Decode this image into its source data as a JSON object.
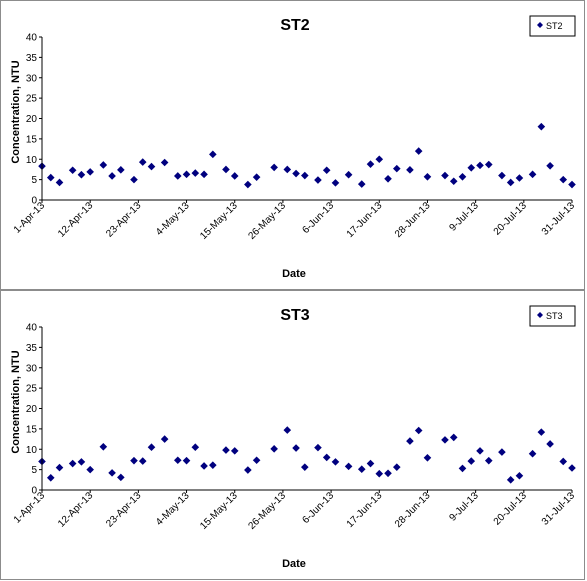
{
  "chart_data": [
    {
      "type": "scatter",
      "title": "ST2",
      "xlabel": "Date",
      "ylabel": "Concentration, NTU",
      "ylim": [
        0,
        40
      ],
      "yticks": [
        0,
        5,
        10,
        15,
        20,
        25,
        30,
        35,
        40
      ],
      "xlim": [
        "2013-04-01",
        "2013-07-31"
      ],
      "xticks": [
        "1-Apr-13",
        "12-Apr-13",
        "23-Apr-13",
        "4-May-13",
        "15-May-13",
        "26-May-13",
        "6-Jun-13",
        "17-Jun-13",
        "28-Jun-13",
        "9-Jul-13",
        "20-Jul-13",
        "31-Jul-13"
      ],
      "xtick_dates": [
        "2013-04-01",
        "2013-04-12",
        "2013-04-23",
        "2013-05-04",
        "2013-05-15",
        "2013-05-26",
        "2013-06-06",
        "2013-06-17",
        "2013-06-28",
        "2013-07-09",
        "2013-07-20",
        "2013-07-31"
      ],
      "grid": false,
      "legend": "top-right",
      "series": [
        {
          "name": "ST2",
          "color": "#00007f",
          "marker": "diamond",
          "points": [
            {
              "x": "2013-04-01",
              "y": 8.3
            },
            {
              "x": "2013-04-03",
              "y": 5.5
            },
            {
              "x": "2013-04-05",
              "y": 4.3
            },
            {
              "x": "2013-04-08",
              "y": 7.3
            },
            {
              "x": "2013-04-10",
              "y": 6.2
            },
            {
              "x": "2013-04-12",
              "y": 6.9
            },
            {
              "x": "2013-04-15",
              "y": 8.6
            },
            {
              "x": "2013-04-17",
              "y": 5.9
            },
            {
              "x": "2013-04-19",
              "y": 7.4
            },
            {
              "x": "2013-04-22",
              "y": 5.0
            },
            {
              "x": "2013-04-24",
              "y": 9.3
            },
            {
              "x": "2013-04-26",
              "y": 8.2
            },
            {
              "x": "2013-04-29",
              "y": 9.2
            },
            {
              "x": "2013-05-02",
              "y": 5.9
            },
            {
              "x": "2013-05-04",
              "y": 6.3
            },
            {
              "x": "2013-05-06",
              "y": 6.6
            },
            {
              "x": "2013-05-08",
              "y": 6.3
            },
            {
              "x": "2013-05-10",
              "y": 11.2
            },
            {
              "x": "2013-05-13",
              "y": 7.5
            },
            {
              "x": "2013-05-15",
              "y": 5.9
            },
            {
              "x": "2013-05-18",
              "y": 3.8
            },
            {
              "x": "2013-05-20",
              "y": 5.6
            },
            {
              "x": "2013-05-24",
              "y": 8.0
            },
            {
              "x": "2013-05-27",
              "y": 7.5
            },
            {
              "x": "2013-05-29",
              "y": 6.5
            },
            {
              "x": "2013-05-31",
              "y": 6.0
            },
            {
              "x": "2013-06-03",
              "y": 4.9
            },
            {
              "x": "2013-06-05",
              "y": 7.3
            },
            {
              "x": "2013-06-07",
              "y": 4.2
            },
            {
              "x": "2013-06-10",
              "y": 6.2
            },
            {
              "x": "2013-06-13",
              "y": 3.9
            },
            {
              "x": "2013-06-15",
              "y": 8.8
            },
            {
              "x": "2013-06-17",
              "y": 10.0
            },
            {
              "x": "2013-06-19",
              "y": 5.2
            },
            {
              "x": "2013-06-21",
              "y": 7.7
            },
            {
              "x": "2013-06-24",
              "y": 7.4
            },
            {
              "x": "2013-06-26",
              "y": 12.0
            },
            {
              "x": "2013-06-28",
              "y": 5.7
            },
            {
              "x": "2013-07-02",
              "y": 6.0
            },
            {
              "x": "2013-07-04",
              "y": 4.6
            },
            {
              "x": "2013-07-06",
              "y": 5.7
            },
            {
              "x": "2013-07-08",
              "y": 7.9
            },
            {
              "x": "2013-07-10",
              "y": 8.5
            },
            {
              "x": "2013-07-12",
              "y": 8.7
            },
            {
              "x": "2013-07-15",
              "y": 6.0
            },
            {
              "x": "2013-07-17",
              "y": 4.3
            },
            {
              "x": "2013-07-19",
              "y": 5.4
            },
            {
              "x": "2013-07-22",
              "y": 6.3
            },
            {
              "x": "2013-07-24",
              "y": 18.0
            },
            {
              "x": "2013-07-26",
              "y": 8.4
            },
            {
              "x": "2013-07-29",
              "y": 5.0
            },
            {
              "x": "2013-07-31",
              "y": 3.8
            }
          ]
        }
      ]
    },
    {
      "type": "scatter",
      "title": "ST3",
      "xlabel": "Date",
      "ylabel": "Concentration, NTU",
      "ylim": [
        0,
        40
      ],
      "yticks": [
        0,
        5,
        10,
        15,
        20,
        25,
        30,
        35,
        40
      ],
      "xlim": [
        "2013-04-01",
        "2013-07-31"
      ],
      "xticks": [
        "1-Apr-13",
        "12-Apr-13",
        "23-Apr-13",
        "4-May-13",
        "15-May-13",
        "26-May-13",
        "6-Jun-13",
        "17-Jun-13",
        "28-Jun-13",
        "9-Jul-13",
        "20-Jul-13",
        "31-Jul-13"
      ],
      "xtick_dates": [
        "2013-04-01",
        "2013-04-12",
        "2013-04-23",
        "2013-05-04",
        "2013-05-15",
        "2013-05-26",
        "2013-06-06",
        "2013-06-17",
        "2013-06-28",
        "2013-07-09",
        "2013-07-20",
        "2013-07-31"
      ],
      "grid": false,
      "legend": "top-right",
      "series": [
        {
          "name": "ST3",
          "color": "#00007f",
          "marker": "diamond",
          "points": [
            {
              "x": "2013-04-01",
              "y": 7.0
            },
            {
              "x": "2013-04-03",
              "y": 3.0
            },
            {
              "x": "2013-04-05",
              "y": 5.5
            },
            {
              "x": "2013-04-08",
              "y": 6.5
            },
            {
              "x": "2013-04-10",
              "y": 6.9
            },
            {
              "x": "2013-04-12",
              "y": 5.0
            },
            {
              "x": "2013-04-15",
              "y": 10.6
            },
            {
              "x": "2013-04-17",
              "y": 4.2
            },
            {
              "x": "2013-04-19",
              "y": 3.1
            },
            {
              "x": "2013-04-22",
              "y": 7.2
            },
            {
              "x": "2013-04-24",
              "y": 7.1
            },
            {
              "x": "2013-04-26",
              "y": 10.5
            },
            {
              "x": "2013-04-29",
              "y": 12.5
            },
            {
              "x": "2013-05-02",
              "y": 7.3
            },
            {
              "x": "2013-05-04",
              "y": 7.2
            },
            {
              "x": "2013-05-06",
              "y": 10.5
            },
            {
              "x": "2013-05-08",
              "y": 5.9
            },
            {
              "x": "2013-05-10",
              "y": 6.1
            },
            {
              "x": "2013-05-13",
              "y": 9.8
            },
            {
              "x": "2013-05-15",
              "y": 9.6
            },
            {
              "x": "2013-05-18",
              "y": 4.9
            },
            {
              "x": "2013-05-20",
              "y": 7.3
            },
            {
              "x": "2013-05-24",
              "y": 10.1
            },
            {
              "x": "2013-05-27",
              "y": 14.7
            },
            {
              "x": "2013-05-29",
              "y": 10.3
            },
            {
              "x": "2013-05-31",
              "y": 5.6
            },
            {
              "x": "2013-06-03",
              "y": 10.4
            },
            {
              "x": "2013-06-05",
              "y": 8.0
            },
            {
              "x": "2013-06-07",
              "y": 6.9
            },
            {
              "x": "2013-06-10",
              "y": 5.8
            },
            {
              "x": "2013-06-13",
              "y": 5.1
            },
            {
              "x": "2013-06-15",
              "y": 6.5
            },
            {
              "x": "2013-06-17",
              "y": 4.0
            },
            {
              "x": "2013-06-19",
              "y": 4.1
            },
            {
              "x": "2013-06-21",
              "y": 5.6
            },
            {
              "x": "2013-06-24",
              "y": 12.0
            },
            {
              "x": "2013-06-26",
              "y": 14.6
            },
            {
              "x": "2013-06-28",
              "y": 7.9
            },
            {
              "x": "2013-07-02",
              "y": 12.3
            },
            {
              "x": "2013-07-04",
              "y": 12.9
            },
            {
              "x": "2013-07-06",
              "y": 5.3
            },
            {
              "x": "2013-07-08",
              "y": 7.1
            },
            {
              "x": "2013-07-10",
              "y": 9.6
            },
            {
              "x": "2013-07-12",
              "y": 7.2
            },
            {
              "x": "2013-07-15",
              "y": 9.3
            },
            {
              "x": "2013-07-17",
              "y": 2.5
            },
            {
              "x": "2013-07-19",
              "y": 3.5
            },
            {
              "x": "2013-07-22",
              "y": 8.9
            },
            {
              "x": "2013-07-24",
              "y": 14.2
            },
            {
              "x": "2013-07-26",
              "y": 11.3
            },
            {
              "x": "2013-07-29",
              "y": 7.0
            },
            {
              "x": "2013-07-31",
              "y": 5.4
            }
          ]
        }
      ]
    }
  ]
}
